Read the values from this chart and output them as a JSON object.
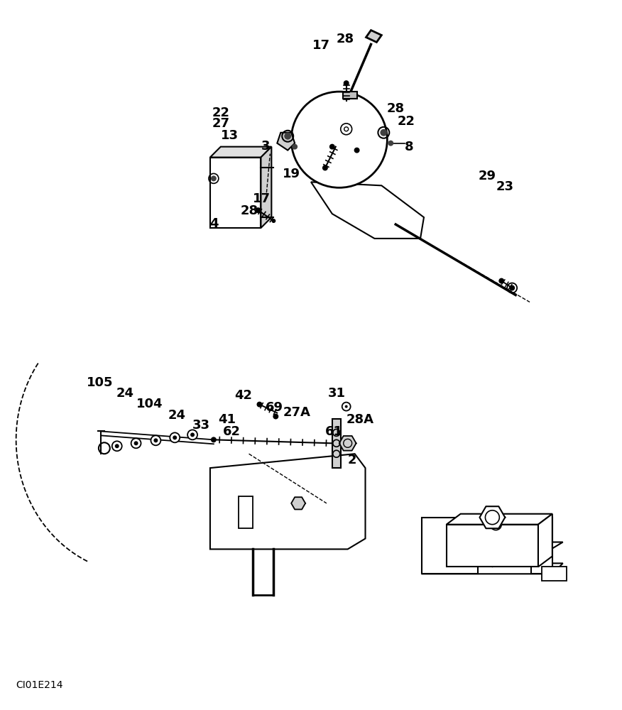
{
  "bg_color": "#ffffff",
  "line_color": "#000000",
  "watermark": "CI01E214",
  "fig_w": 8.76,
  "fig_h": 10.0,
  "dpi": 100
}
